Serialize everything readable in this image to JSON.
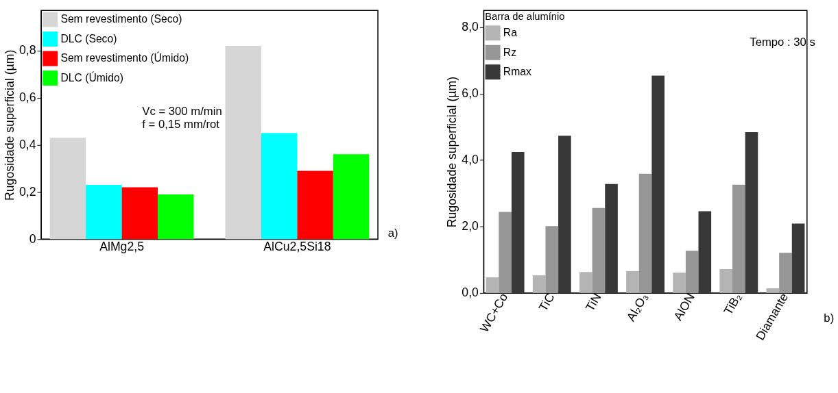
{
  "chart_data": [
    {
      "type": "bar",
      "ylabel": "Rugosidade superficial (µm)",
      "categories": [
        "AlMg2,5",
        "AlCu2,5Si18"
      ],
      "series": [
        {
          "name": "Sem revestimento (Seco)",
          "color": "#d6d6d6",
          "values": [
            0.43,
            0.82
          ]
        },
        {
          "name": "DLC (Seco)",
          "color": "#00ffff",
          "values": [
            0.23,
            0.45
          ]
        },
        {
          "name": "Sem revestimento (Úmido)",
          "color": "#ff0000",
          "values": [
            0.22,
            0.29
          ]
        },
        {
          "name": "DLC (Úmido)",
          "color": "#00ff00",
          "values": [
            0.19,
            0.36
          ]
        }
      ],
      "ylim": [
        0,
        0.97
      ],
      "yticks": [
        0,
        {
          "value": 0.2,
          "label": "0,2"
        },
        {
          "value": 0.4,
          "label": "0,4"
        },
        {
          "value": 0.6,
          "label": "0,6"
        },
        {
          "value": 0.8,
          "label": "0,8"
        }
      ],
      "annotations": [
        "Vc = 300 m/min",
        "f = 0,15 mm/rot",
        "a)"
      ],
      "legend": "top left",
      "grid": false
    },
    {
      "type": "bar",
      "ylabel": "Rugosidade superficial (µm)",
      "legend_title": "Barra de alumínio",
      "categories": [
        "WC+Co",
        "TiC",
        "TiN",
        "Al₂O₃",
        "AlON",
        "TiB₂",
        "Diamante"
      ],
      "series": [
        {
          "name": "Ra",
          "color": "#b4b4b4",
          "values": [
            0.47,
            0.53,
            0.63,
            0.66,
            0.61,
            0.72,
            0.14
          ]
        },
        {
          "name": "Rz",
          "color": "#969696",
          "values": [
            2.44,
            2.01,
            2.56,
            3.59,
            1.27,
            3.26,
            1.21
          ]
        },
        {
          "name": "Rmax",
          "color": "#383838",
          "values": [
            4.24,
            4.73,
            3.28,
            6.54,
            2.46,
            4.84,
            2.09
          ]
        }
      ],
      "ylim": [
        0,
        8.5
      ],
      "yticks": [
        {
          "value": 0,
          "label": "0,0"
        },
        {
          "value": 2,
          "label": "2,0"
        },
        {
          "value": 4,
          "label": "4,0"
        },
        {
          "value": 6,
          "label": "6,0"
        },
        {
          "value": 8,
          "label": "8,0"
        }
      ],
      "annotations": [
        "Tempo : 30 s",
        "b)"
      ],
      "legend": "top left",
      "grid": false
    }
  ]
}
